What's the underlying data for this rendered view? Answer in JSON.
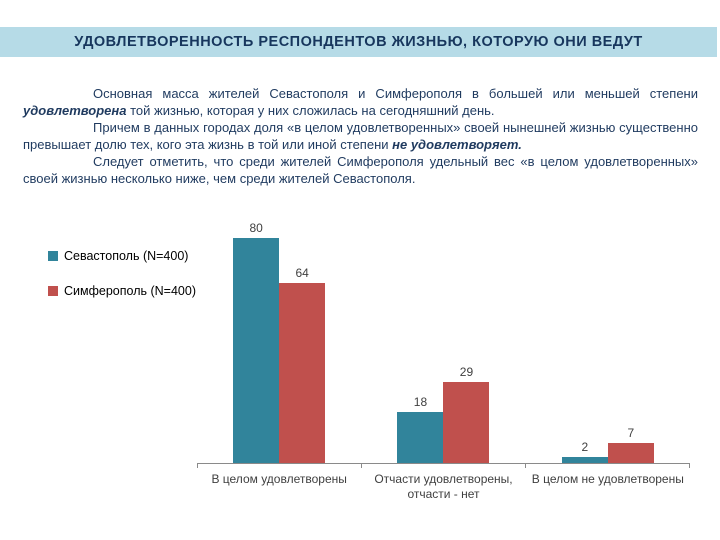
{
  "colors": {
    "banner_bg": "#B6DBE7",
    "banner_text": "#17365D",
    "body_text": "#1F3A5F",
    "label_gray": "#3F3F3F",
    "axis_gray": "#8A8A8A"
  },
  "banner": {
    "title": "УДОВЛЕТВОРЕННОСТЬ  РЕСПОНДЕНТОВ  ЖИЗНЬЮ,  КОТОРУЮ ОНИ ВЕДУТ"
  },
  "paragraphs": [
    {
      "pre": "Основная масса жителей Севастополя и Симферополя в большей или меньшей степени ",
      "bold": "удовлетворена",
      "post": " той жизнью, которая у них сложилась на сегодняшний день."
    },
    {
      "pre": "Причем  в данных городах доля «в целом удовлетворенных» своей нынешней жизнью существенно превышает долю тех, кого эта жизнь в той или иной степени ",
      "bold": "не удовлетворяет.",
      "post": ""
    },
    {
      "pre": "Следует отметить, что среди жителей Симферополя удельный вес «в целом удовлетворенных» своей жизнью несколько ниже, чем среди жителей Севастополя.",
      "bold": "",
      "post": ""
    }
  ],
  "legend": {
    "items": [
      {
        "label": "Севастополь (N=400)",
        "color": "#31849B"
      },
      {
        "label": "Симферополь (N=400)",
        "color": "#C0504D"
      }
    ]
  },
  "chart_data": {
    "type": "bar",
    "title": "УДОВЛЕТВОРЕННОСТЬ  РЕСПОНДЕНТОВ  ЖИЗНЬЮ,  КОТОРУЮ ОНИ ВЕДУТ",
    "categories": [
      "В целом удовлетворены",
      "Отчасти удовлетворены,\nотчасти - нет",
      "В целом не удовлетворены"
    ],
    "series": [
      {
        "name": "Севастополь (N=400)",
        "color": "#31849B",
        "values": [
          80,
          18,
          2
        ]
      },
      {
        "name": "Симферополь (N=400)",
        "color": "#C0504D",
        "values": [
          64,
          29,
          7
        ]
      }
    ],
    "value_labels": true,
    "xlabel": "",
    "ylabel": "",
    "ylim": [
      0,
      85
    ],
    "grid": false,
    "legend_position": "left"
  }
}
